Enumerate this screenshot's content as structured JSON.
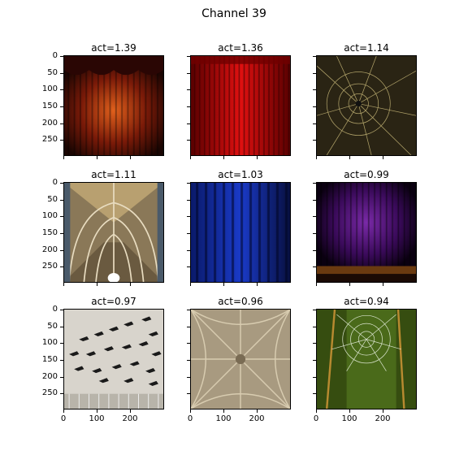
{
  "figure": {
    "title": "Channel 39"
  },
  "panels": [
    {
      "title": "act=1.39",
      "image": "red stage curtain with valance"
    },
    {
      "title": "act=1.36",
      "image": "bright red curtain"
    },
    {
      "title": "act=1.14",
      "image": "spider web on dark background"
    },
    {
      "title": "act=1.11",
      "image": "gothic cathedral vaulted ceiling"
    },
    {
      "title": "act=1.03",
      "image": "blue curtain"
    },
    {
      "title": "act=0.99",
      "image": "purple stage curtain"
    },
    {
      "title": "act=0.97",
      "image": "wall with black bird silhouettes"
    },
    {
      "title": "act=0.96",
      "image": "stone ribbed vault ceiling"
    },
    {
      "title": "act=0.94",
      "image": "dewy spider web in grass"
    }
  ],
  "y_ticks": [
    "0",
    "50",
    "100",
    "150",
    "200",
    "250"
  ],
  "x_ticks": [
    "0",
    "100",
    "200"
  ]
}
